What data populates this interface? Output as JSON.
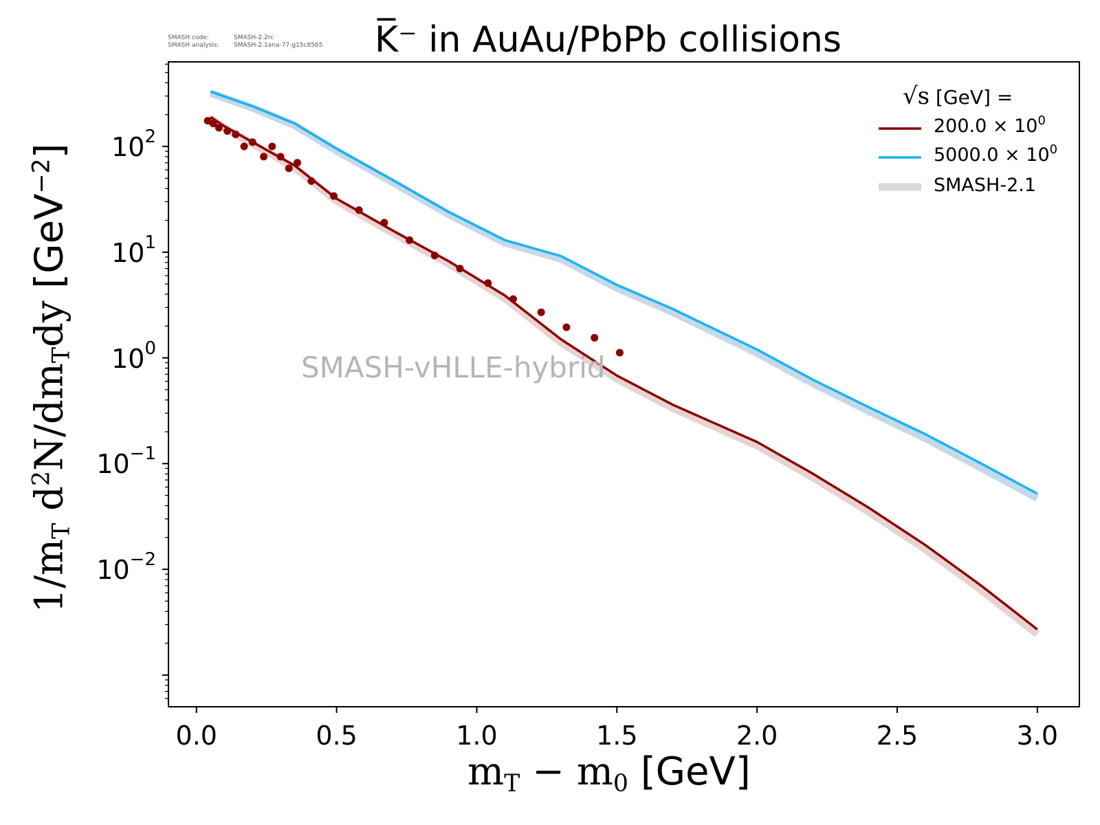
{
  "chart_data": {
    "type": "line",
    "title": "K̅⁻ in AuAu/PbPb collisions",
    "xlabel_parts": {
      "a": "m",
      "a_sub": "T",
      "minus": " − ",
      "b": "m",
      "b_sub": "0",
      "unit": " [GeV]"
    },
    "ylabel_parts": {
      "p1": "1/m",
      "p1_sub": "T",
      "p2": " d",
      "p2_sup": "2",
      "p3": "N/dm",
      "p3_sub": "T",
      "p4": "dy",
      "unit": " [GeV",
      "unit_sup": "−2",
      "unit_end": "]"
    },
    "xlim": [
      -0.1,
      3.15
    ],
    "ylim_log10": [
      -3.3,
      2.8
    ],
    "yscale": "log",
    "x_ticks": [
      "0.0",
      "0.5",
      "1.0",
      "1.5",
      "2.0",
      "2.5",
      "3.0"
    ],
    "y_ticks": [
      {
        "base": "10",
        "exp": "2"
      },
      {
        "base": "10",
        "exp": "1"
      },
      {
        "base": "10",
        "exp": "0"
      },
      {
        "base": "10",
        "exp": "−1"
      },
      {
        "base": "10",
        "exp": "−2"
      }
    ],
    "legend": {
      "title_root": "√s",
      "title_rest": " [GeV] =",
      "entries": [
        {
          "label": "200.0 × 10",
          "exp": "0",
          "color": "#8b0000"
        },
        {
          "label": "5000.0 × 10",
          "exp": "0",
          "color": "#1ab2f0"
        },
        {
          "label": "SMASH-2.1",
          "exp": "",
          "color": "#d9d9d9"
        }
      ],
      "placement": "top-right"
    },
    "series": [
      {
        "name": "200.0 × 10⁰",
        "color": "#8b0000",
        "x": [
          0.05,
          0.1,
          0.2,
          0.35,
          0.5,
          0.7,
          0.9,
          1.1,
          1.3,
          1.5,
          1.7,
          2.0,
          2.2,
          2.4,
          2.6,
          2.8,
          3.0
        ],
        "y": [
          190,
          155,
          110,
          66,
          32,
          16,
          8.2,
          3.9,
          1.5,
          0.68,
          0.36,
          0.16,
          0.08,
          0.038,
          0.017,
          0.007,
          0.0027
        ]
      },
      {
        "name": "5000.0 × 10⁰",
        "color": "#1ab2f0",
        "x": [
          0.05,
          0.2,
          0.35,
          0.5,
          0.7,
          0.9,
          1.1,
          1.3,
          1.5,
          1.7,
          2.0,
          2.2,
          2.4,
          2.6,
          2.8,
          3.0
        ],
        "y": [
          330,
          240,
          165,
          95,
          48,
          24,
          13,
          9.2,
          4.9,
          2.9,
          1.2,
          0.62,
          0.34,
          0.19,
          0.1,
          0.052
        ]
      },
      {
        "name": "SMASH-2.1",
        "type": "scatter",
        "color": "#8b0000",
        "x": [
          0.04,
          0.06,
          0.08,
          0.11,
          0.14,
          0.17,
          0.2,
          0.24,
          0.27,
          0.3,
          0.33,
          0.36,
          0.41,
          0.49,
          0.58,
          0.67,
          0.76,
          0.85,
          0.94,
          1.04,
          1.13,
          1.23,
          1.32,
          1.42,
          1.51
        ],
        "y": [
          175,
          165,
          150,
          140,
          130,
          100,
          110,
          80,
          100,
          80,
          62,
          70,
          47,
          34,
          25,
          19,
          13,
          9.3,
          7.0,
          5.1,
          3.6,
          2.7,
          1.95,
          1.55,
          1.12
        ]
      }
    ],
    "grid": false
  },
  "info": {
    "code_key": "SMASH code:",
    "code_val": "SMASH-2.2rc",
    "analysis_key": "SMASH analysis:",
    "analysis_val": "SMASH-2.1ana-77-g15c8565"
  },
  "watermark": "SMASH-vHLLE-hybrid"
}
